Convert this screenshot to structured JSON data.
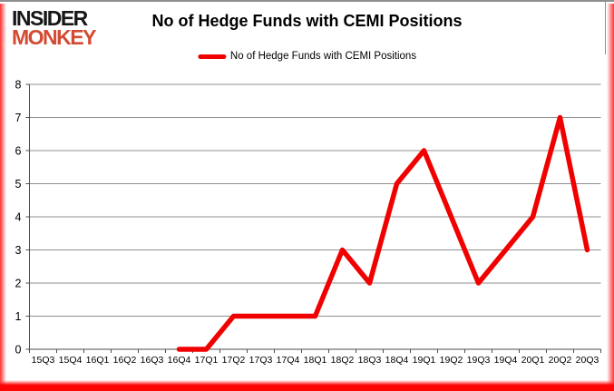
{
  "brand": {
    "line1": "INSIDER",
    "line2": "MONKEY",
    "line1_color": "#161616",
    "line2_color": "#d44a32"
  },
  "header": {
    "title": "No of Hedge Funds with CEMI Positions"
  },
  "legend": {
    "label": "No of Hedge Funds with CEMI Positions",
    "swatch_color": "#f10000"
  },
  "chart_data": {
    "type": "line",
    "title": "No of Hedge Funds with CEMI Positions",
    "categories": [
      "15Q3",
      "15Q4",
      "16Q1",
      "16Q2",
      "16Q3",
      "16Q4",
      "17Q1",
      "17Q2",
      "17Q3",
      "17Q4",
      "18Q1",
      "18Q2",
      "18Q3",
      "18Q4",
      "19Q1",
      "19Q2",
      "19Q3",
      "19Q4",
      "20Q1",
      "20Q2",
      "20Q3"
    ],
    "series": [
      {
        "name": "No of Hedge Funds with CEMI Positions",
        "color": "#f10000",
        "values": [
          null,
          null,
          null,
          null,
          null,
          0,
          0,
          1,
          1,
          1,
          1,
          3,
          2,
          5,
          6,
          4,
          2,
          3,
          4,
          7,
          3
        ]
      }
    ],
    "xlabel": "",
    "ylabel": "",
    "ylim": [
      0,
      8
    ],
    "ytick_step": 1,
    "grid": "horizontal",
    "gridline_color": "#8f8f8f",
    "axis_color": "#4d4d4d",
    "legend_position": "top"
  }
}
